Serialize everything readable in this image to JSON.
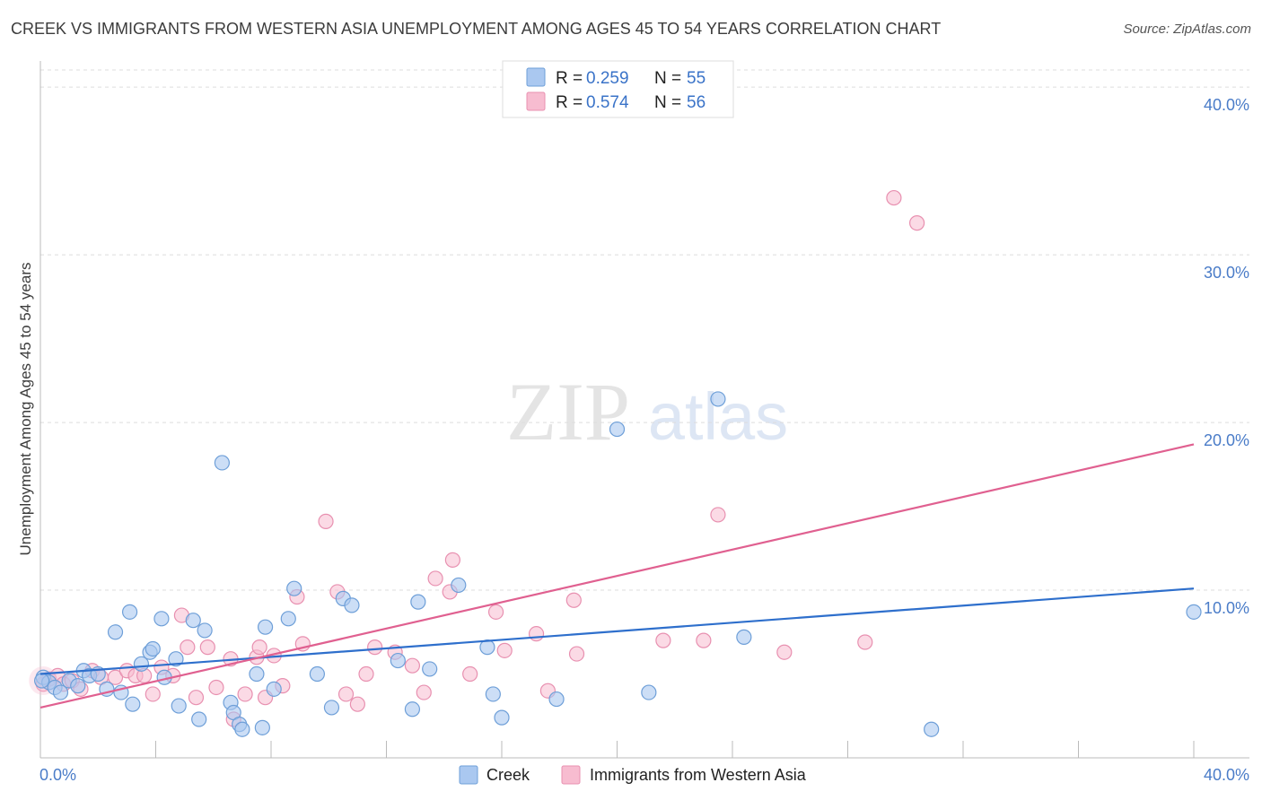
{
  "header": {
    "title": "CREEK VS IMMIGRANTS FROM WESTERN ASIA UNEMPLOYMENT AMONG AGES 45 TO 54 YEARS CORRELATION CHART",
    "source": "Source: ZipAtlas.com"
  },
  "watermark": {
    "zip": "ZIP",
    "atlas": "atlas"
  },
  "legend": {
    "r_label": "R =",
    "n_label": "N =",
    "rows": [
      {
        "r": "0.259",
        "n": "55"
      },
      {
        "r": "0.574",
        "n": "56"
      }
    ]
  },
  "colors": {
    "creek_fill": "#aac8f0",
    "creek_stroke": "#6e9fd8",
    "creek_line": "#2e6fcc",
    "imm_fill": "#f7bcd0",
    "imm_stroke": "#e890b0",
    "imm_line": "#e06090",
    "grid": "#dddddd",
    "axis": "#bbbbbb"
  },
  "chart_data": {
    "type": "scatter",
    "title": "CREEK VS IMMIGRANTS FROM WESTERN ASIA UNEMPLOYMENT AMONG AGES 45 TO 54 YEARS CORRELATION CHART",
    "xlabel": "",
    "ylabel": "Unemployment Among Ages 45 to 54 years",
    "xlim": [
      0,
      40
    ],
    "ylim": [
      0,
      40
    ],
    "x_tick_labels": [
      "0.0%",
      "40.0%"
    ],
    "y_tick_labels": [
      "10.0%",
      "20.0%",
      "30.0%",
      "40.0%"
    ],
    "y_ticks": [
      10,
      20,
      30,
      40
    ],
    "grid": true,
    "legend_position": "top-center",
    "series": [
      {
        "name": "Creek",
        "r": 0.259,
        "n": 55,
        "trend": {
          "x": [
            0,
            40
          ],
          "y": [
            5.0,
            10.1
          ]
        },
        "points": [
          [
            0.1,
            4.8
          ],
          [
            0.3,
            4.5
          ],
          [
            0.5,
            4.2
          ],
          [
            0.7,
            3.9
          ],
          [
            1.0,
            4.6
          ],
          [
            1.3,
            4.3
          ],
          [
            1.5,
            5.2
          ],
          [
            1.7,
            4.9
          ],
          [
            2.0,
            5.0
          ],
          [
            2.3,
            4.1
          ],
          [
            2.6,
            7.5
          ],
          [
            2.8,
            3.9
          ],
          [
            3.1,
            8.7
          ],
          [
            3.2,
            3.2
          ],
          [
            3.5,
            5.6
          ],
          [
            3.8,
            6.3
          ],
          [
            3.9,
            6.5
          ],
          [
            4.2,
            8.3
          ],
          [
            4.3,
            4.8
          ],
          [
            4.7,
            5.9
          ],
          [
            4.8,
            3.1
          ],
          [
            5.3,
            8.2
          ],
          [
            5.5,
            2.3
          ],
          [
            5.7,
            7.6
          ],
          [
            6.3,
            17.6
          ],
          [
            6.6,
            3.3
          ],
          [
            6.7,
            2.7
          ],
          [
            6.9,
            2.0
          ],
          [
            7.0,
            1.7
          ],
          [
            7.5,
            5.0
          ],
          [
            7.7,
            1.8
          ],
          [
            7.8,
            7.8
          ],
          [
            8.1,
            4.1
          ],
          [
            8.6,
            8.3
          ],
          [
            8.8,
            10.1
          ],
          [
            9.6,
            5.0
          ],
          [
            10.1,
            3.0
          ],
          [
            10.5,
            9.5
          ],
          [
            10.8,
            9.1
          ],
          [
            12.4,
            5.8
          ],
          [
            12.9,
            2.9
          ],
          [
            13.1,
            9.3
          ],
          [
            13.5,
            5.3
          ],
          [
            14.5,
            10.3
          ],
          [
            15.5,
            6.6
          ],
          [
            15.7,
            3.8
          ],
          [
            16.0,
            2.4
          ],
          [
            17.9,
            3.5
          ],
          [
            20.0,
            19.6
          ],
          [
            21.1,
            3.9
          ],
          [
            23.5,
            21.4
          ],
          [
            24.4,
            7.2
          ],
          [
            30.9,
            1.7
          ],
          [
            40.0,
            8.7
          ],
          [
            0.05,
            4.6
          ]
        ]
      },
      {
        "name": "Immigrants from Western Asia",
        "r": 0.574,
        "n": 56,
        "trend": {
          "x": [
            0,
            40
          ],
          "y": [
            3.0,
            18.7
          ]
        },
        "points": [
          [
            0.1,
            4.4
          ],
          [
            0.3,
            4.7
          ],
          [
            0.6,
            4.9
          ],
          [
            0.8,
            4.4
          ],
          [
            1.1,
            4.6
          ],
          [
            1.4,
            4.1
          ],
          [
            1.8,
            5.2
          ],
          [
            2.1,
            4.8
          ],
          [
            2.6,
            4.8
          ],
          [
            3.0,
            5.2
          ],
          [
            3.3,
            4.9
          ],
          [
            3.6,
            4.9
          ],
          [
            3.9,
            3.8
          ],
          [
            4.2,
            5.4
          ],
          [
            4.6,
            4.9
          ],
          [
            4.9,
            8.5
          ],
          [
            5.1,
            6.6
          ],
          [
            5.4,
            3.6
          ],
          [
            5.8,
            6.6
          ],
          [
            6.1,
            4.2
          ],
          [
            6.6,
            5.9
          ],
          [
            6.7,
            2.3
          ],
          [
            7.1,
            3.8
          ],
          [
            7.5,
            6.0
          ],
          [
            7.6,
            6.6
          ],
          [
            7.8,
            3.6
          ],
          [
            8.1,
            6.1
          ],
          [
            8.4,
            4.3
          ],
          [
            8.9,
            9.6
          ],
          [
            9.1,
            6.8
          ],
          [
            9.9,
            14.1
          ],
          [
            10.3,
            9.9
          ],
          [
            10.6,
            3.8
          ],
          [
            11.0,
            3.2
          ],
          [
            11.3,
            5.0
          ],
          [
            11.6,
            6.6
          ],
          [
            12.3,
            6.3
          ],
          [
            12.9,
            5.5
          ],
          [
            13.3,
            3.9
          ],
          [
            13.7,
            10.7
          ],
          [
            14.2,
            9.9
          ],
          [
            14.3,
            11.8
          ],
          [
            14.9,
            5.0
          ],
          [
            15.8,
            8.7
          ],
          [
            16.1,
            6.4
          ],
          [
            17.2,
            7.4
          ],
          [
            17.6,
            4.0
          ],
          [
            18.6,
            6.2
          ],
          [
            18.5,
            9.4
          ],
          [
            21.6,
            7.0
          ],
          [
            23.0,
            7.0
          ],
          [
            23.5,
            14.5
          ],
          [
            25.8,
            6.3
          ],
          [
            28.6,
            6.9
          ],
          [
            29.6,
            33.4
          ],
          [
            30.4,
            31.9
          ]
        ]
      }
    ]
  },
  "bottom_legend": [
    {
      "label": "Creek"
    },
    {
      "label": "Immigrants from Western Asia"
    }
  ]
}
